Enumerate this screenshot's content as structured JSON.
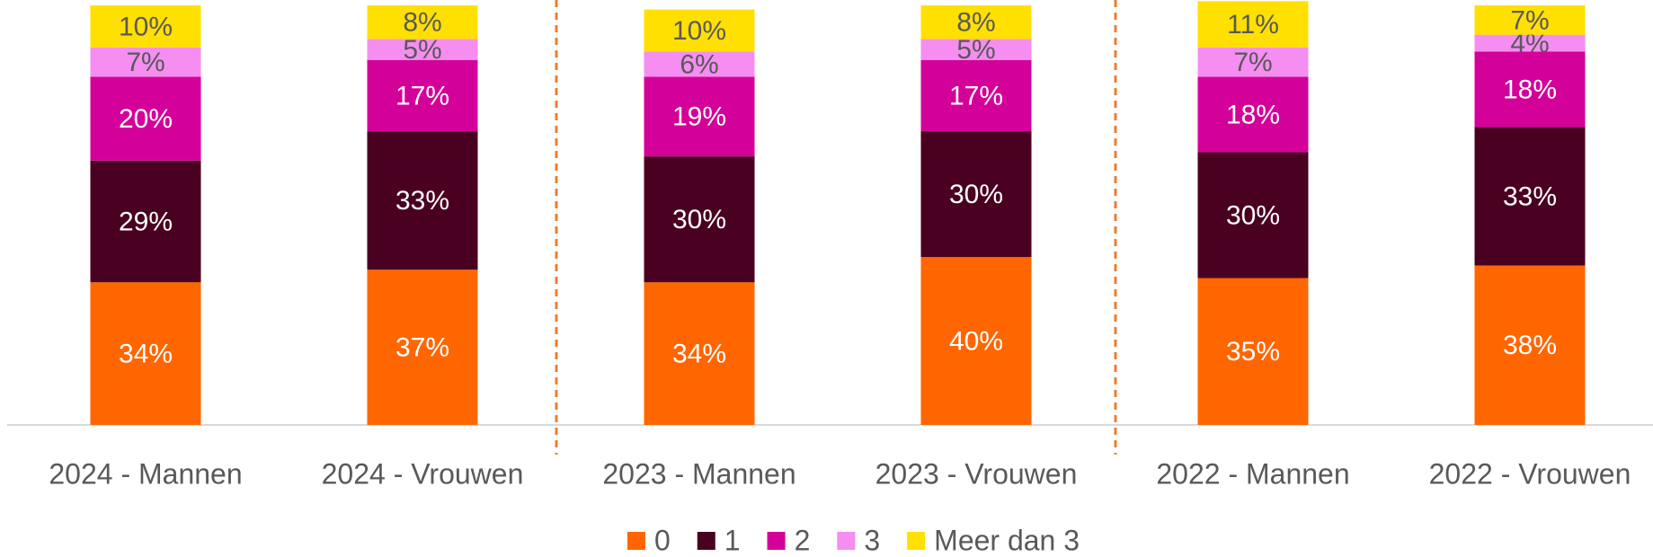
{
  "chart_data": {
    "type": "stacked_bar",
    "categories": [
      "2024 - Mannen",
      "2024 - Vrouwen",
      "2023 - Mannen",
      "2023 - Vrouwen",
      "2022 - Mannen",
      "2022 - Vrouwen"
    ],
    "series": [
      {
        "name": "0",
        "color": "#ff6600",
        "values": [
          34,
          37,
          34,
          40,
          35,
          38
        ],
        "value_labels": [
          "34%",
          "37%",
          "34%",
          "40%",
          "35%",
          "38%"
        ]
      },
      {
        "name": "1",
        "color": "#4a0020",
        "values": [
          29,
          33,
          30,
          30,
          30,
          33
        ],
        "value_labels": [
          "29%",
          "33%",
          "30%",
          "30%",
          "30%",
          "33%"
        ]
      },
      {
        "name": "2",
        "color": "#d4009a",
        "values": [
          20,
          17,
          19,
          17,
          18,
          18
        ],
        "value_labels": [
          "20%",
          "17%",
          "19%",
          "17%",
          "18%",
          "18%"
        ]
      },
      {
        "name": "3",
        "color": "#f58ef0",
        "values": [
          7,
          5,
          6,
          5,
          7,
          4
        ],
        "value_labels": [
          "7%",
          "5%",
          "6%",
          "5%",
          "7%",
          "4%"
        ]
      },
      {
        "name": "Meer dan 3",
        "color": "#ffe000",
        "values": [
          10,
          8,
          10,
          8,
          11,
          7
        ],
        "value_labels": [
          "10%",
          "8%",
          "10%",
          "8%",
          "11%",
          "7%"
        ]
      }
    ],
    "ylim": [
      0,
      100
    ],
    "legend": "bottom"
  }
}
